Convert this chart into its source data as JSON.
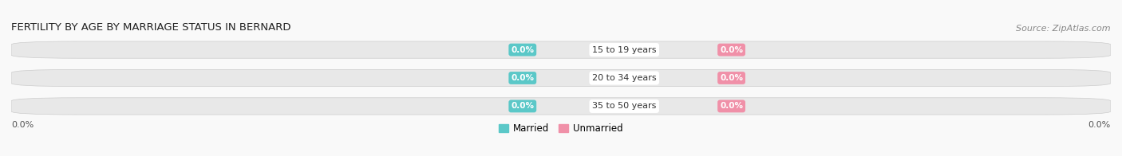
{
  "title": "FERTILITY BY AGE BY MARRIAGE STATUS IN BERNARD",
  "source": "Source: ZipAtlas.com",
  "categories": [
    "15 to 19 years",
    "20 to 34 years",
    "35 to 50 years"
  ],
  "married_values": [
    0.0,
    0.0,
    0.0
  ],
  "unmarried_values": [
    0.0,
    0.0,
    0.0
  ],
  "married_color": "#5bc8c8",
  "unmarried_color": "#f090a8",
  "bar_bg_color": "#e8e8e8",
  "bar_bg_color2": "#f0f0f0",
  "category_label_color": "#333333",
  "left_axis_label": "0.0%",
  "right_axis_label": "0.0%",
  "legend_married": "Married",
  "legend_unmarried": "Unmarried",
  "background_color": "#f9f9f9",
  "title_fontsize": 9.5,
  "source_fontsize": 8,
  "bar_height": 0.6,
  "figsize": [
    14.06,
    1.96
  ],
  "xlim_left": -1.0,
  "xlim_right": 1.0
}
